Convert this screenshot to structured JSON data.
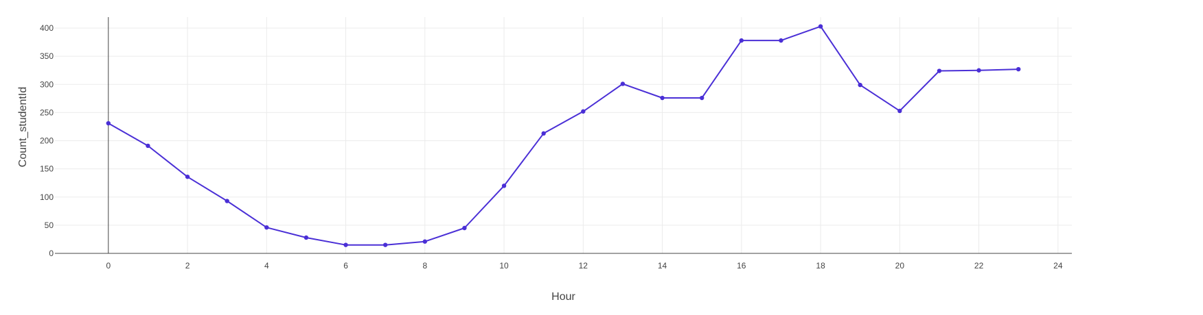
{
  "chart_data": {
    "type": "line",
    "title": "",
    "xlabel": "Hour",
    "ylabel": "Count_studentId",
    "xlim": [
      -1.35,
      24.35
    ],
    "ylim": [
      0,
      400
    ],
    "x_ticks": [
      0,
      2,
      4,
      6,
      8,
      10,
      12,
      14,
      16,
      18,
      20,
      22,
      24
    ],
    "y_ticks": [
      0,
      50,
      100,
      150,
      200,
      250,
      300,
      350,
      400
    ],
    "grid": true,
    "legend": "none",
    "series": [
      {
        "color": "#4a2fd6",
        "x": [
          0,
          1,
          2,
          3,
          4,
          5,
          6,
          7,
          8,
          9,
          10,
          11,
          12,
          13,
          14,
          15,
          16,
          17,
          18,
          19,
          20,
          21,
          22,
          23
        ],
        "y": [
          231,
          191,
          136,
          93,
          46,
          28,
          15,
          15,
          21,
          45,
          120,
          213,
          252,
          301,
          276,
          276,
          378,
          378,
          403,
          299,
          253,
          324,
          325,
          327
        ]
      }
    ]
  }
}
